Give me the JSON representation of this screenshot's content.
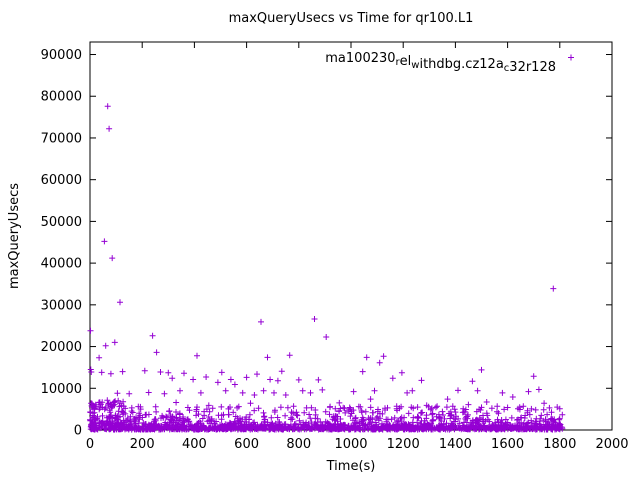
{
  "colors": {
    "marker": "#9400d3",
    "axis": "#000000",
    "background": "#ffffff"
  },
  "legend": {
    "segments": [
      {
        "t": "ma100230",
        "sub": false
      },
      {
        "t": "r",
        "sub": true
      },
      {
        "t": "el",
        "sub": false
      },
      {
        "t": "w",
        "sub": true
      },
      {
        "t": "ithdbg.cz12a",
        "sub": false
      },
      {
        "t": "c",
        "sub": true
      },
      {
        "t": "32r128",
        "sub": false
      }
    ],
    "series_name_plain": "ma100230_rel_withdbg.cz12a_c32r128",
    "marker": "plus",
    "position": "top-right-inside"
  },
  "chart_data": {
    "type": "scatter",
    "title": "maxQueryUsecs vs Time for qr100.L1",
    "xlabel": "Time(s)",
    "ylabel": "maxQueryUsecs",
    "xlim": [
      0,
      2000
    ],
    "ylim": [
      0,
      93000
    ],
    "xticks": [
      0,
      200,
      400,
      600,
      800,
      1000,
      1200,
      1400,
      1600,
      1800,
      2000
    ],
    "yticks": [
      0,
      10000,
      20000,
      30000,
      40000,
      50000,
      60000,
      70000,
      80000,
      90000
    ],
    "grid": false,
    "legend_entry": "ma100230_rel_withdbg.cz12a_c32r128",
    "outliers": [
      [
        2,
        23800
      ],
      [
        3,
        14500
      ],
      [
        5,
        13900
      ],
      [
        8,
        6300
      ],
      [
        12,
        5900
      ],
      [
        35,
        17300
      ],
      [
        45,
        13800
      ],
      [
        55,
        45200
      ],
      [
        60,
        20200
      ],
      [
        68,
        77600
      ],
      [
        73,
        72200
      ],
      [
        80,
        13500
      ],
      [
        85,
        41200
      ],
      [
        95,
        21000
      ],
      [
        105,
        8800
      ],
      [
        115,
        30600
      ],
      [
        125,
        14000
      ],
      [
        150,
        8700
      ],
      [
        160,
        5300
      ],
      [
        185,
        5600
      ],
      [
        210,
        14200
      ],
      [
        225,
        9000
      ],
      [
        240,
        22600
      ],
      [
        255,
        18600
      ],
      [
        270,
        13900
      ],
      [
        285,
        8700
      ],
      [
        300,
        13700
      ],
      [
        315,
        12400
      ],
      [
        330,
        6600
      ],
      [
        345,
        9400
      ],
      [
        360,
        13600
      ],
      [
        375,
        5400
      ],
      [
        395,
        12100
      ],
      [
        410,
        17800
      ],
      [
        425,
        8900
      ],
      [
        445,
        12700
      ],
      [
        455,
        5900
      ],
      [
        470,
        5200
      ],
      [
        490,
        11400
      ],
      [
        505,
        13800
      ],
      [
        520,
        9400
      ],
      [
        540,
        12100
      ],
      [
        555,
        10900
      ],
      [
        570,
        5600
      ],
      [
        585,
        8900
      ],
      [
        600,
        12600
      ],
      [
        615,
        6400
      ],
      [
        630,
        8400
      ],
      [
        640,
        13400
      ],
      [
        655,
        25900
      ],
      [
        665,
        9400
      ],
      [
        680,
        17400
      ],
      [
        690,
        12100
      ],
      [
        705,
        8900
      ],
      [
        720,
        11800
      ],
      [
        735,
        14100
      ],
      [
        750,
        8400
      ],
      [
        765,
        17900
      ],
      [
        780,
        5700
      ],
      [
        800,
        12000
      ],
      [
        815,
        9400
      ],
      [
        830,
        5300
      ],
      [
        845,
        8900
      ],
      [
        860,
        26600
      ],
      [
        875,
        12000
      ],
      [
        890,
        9600
      ],
      [
        905,
        22300
      ],
      [
        920,
        5600
      ],
      [
        940,
        5100
      ],
      [
        955,
        6500
      ],
      [
        975,
        5200
      ],
      [
        995,
        5400
      ],
      [
        1010,
        9200
      ],
      [
        1030,
        5600
      ],
      [
        1045,
        14000
      ],
      [
        1060,
        17400
      ],
      [
        1075,
        7400
      ],
      [
        1090,
        9400
      ],
      [
        1110,
        16100
      ],
      [
        1125,
        17700
      ],
      [
        1140,
        5300
      ],
      [
        1160,
        12400
      ],
      [
        1175,
        5700
      ],
      [
        1195,
        13700
      ],
      [
        1215,
        8900
      ],
      [
        1235,
        9400
      ],
      [
        1255,
        5500
      ],
      [
        1270,
        11900
      ],
      [
        1290,
        5900
      ],
      [
        1310,
        5200
      ],
      [
        1330,
        5700
      ],
      [
        1350,
        4400
      ],
      [
        1370,
        7400
      ],
      [
        1390,
        5700
      ],
      [
        1410,
        9500
      ],
      [
        1430,
        5100
      ],
      [
        1450,
        6100
      ],
      [
        1465,
        11700
      ],
      [
        1485,
        9400
      ],
      [
        1500,
        14400
      ],
      [
        1520,
        6700
      ],
      [
        1540,
        5200
      ],
      [
        1560,
        5700
      ],
      [
        1580,
        8900
      ],
      [
        1600,
        5400
      ],
      [
        1620,
        7900
      ],
      [
        1640,
        5100
      ],
      [
        1660,
        5700
      ],
      [
        1680,
        9200
      ],
      [
        1700,
        12900
      ],
      [
        1720,
        9700
      ],
      [
        1740,
        6400
      ],
      [
        1760,
        5300
      ],
      [
        1775,
        33900
      ],
      [
        1790,
        5500
      ],
      [
        1800,
        5100
      ]
    ],
    "dense_band": {
      "count": 1500,
      "x_range": [
        0,
        1810
      ],
      "y_base": 100,
      "y_scale": 700,
      "y_cap": 3200,
      "seed": 42
    },
    "mid_band": {
      "count": 240,
      "x_range": [
        0,
        1810
      ],
      "y_range": [
        2500,
        5600
      ],
      "pow": 1.6,
      "seed": 7
    },
    "left_cluster": {
      "count": 85,
      "x_range": [
        0,
        130
      ],
      "y_range": [
        800,
        7200
      ],
      "seed": 13
    }
  }
}
